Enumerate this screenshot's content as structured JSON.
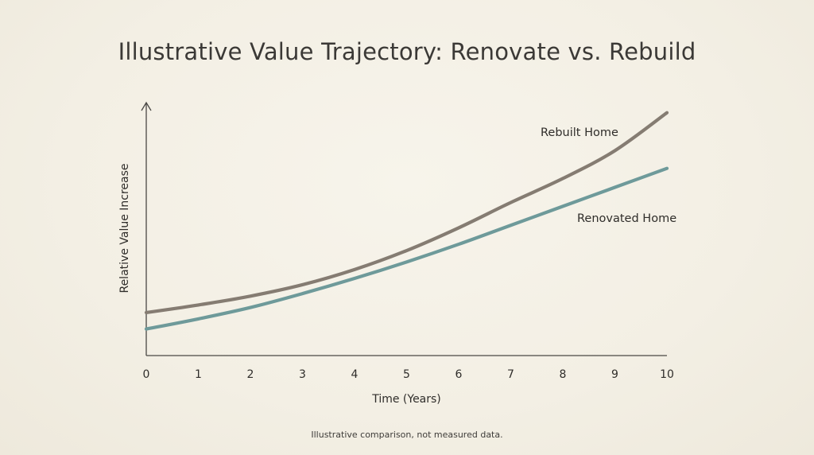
{
  "chart_data": {
    "type": "line",
    "title": "Illustrative Value Trajectory: Renovate vs. Rebuild",
    "xlabel": "Time (Years)",
    "ylabel": "Relative Value Increase",
    "xlim": [
      0,
      10
    ],
    "ylim": [
      0,
      100
    ],
    "x_ticks": [
      "0",
      "1",
      "2",
      "3",
      "4",
      "5",
      "6",
      "7",
      "8",
      "9",
      "10"
    ],
    "grid": false,
    "legend": "inline-labels",
    "footnote": "Illustrative comparison, not measured data.",
    "x": [
      0,
      1,
      2,
      3,
      4,
      5,
      6,
      7,
      8,
      9,
      10
    ],
    "series": [
      {
        "name": "Rebuilt Home",
        "color": "#857c72",
        "values": [
          17,
          20,
          23.5,
          28,
          34,
          41.5,
          50.5,
          60.5,
          70,
          81,
          96
        ]
      },
      {
        "name": "Renovated Home",
        "color": "#6e9a9a",
        "values": [
          10.5,
          14.5,
          19,
          24.5,
          30.5,
          37,
          44,
          51.5,
          59,
          66.5,
          74
        ]
      }
    ]
  }
}
